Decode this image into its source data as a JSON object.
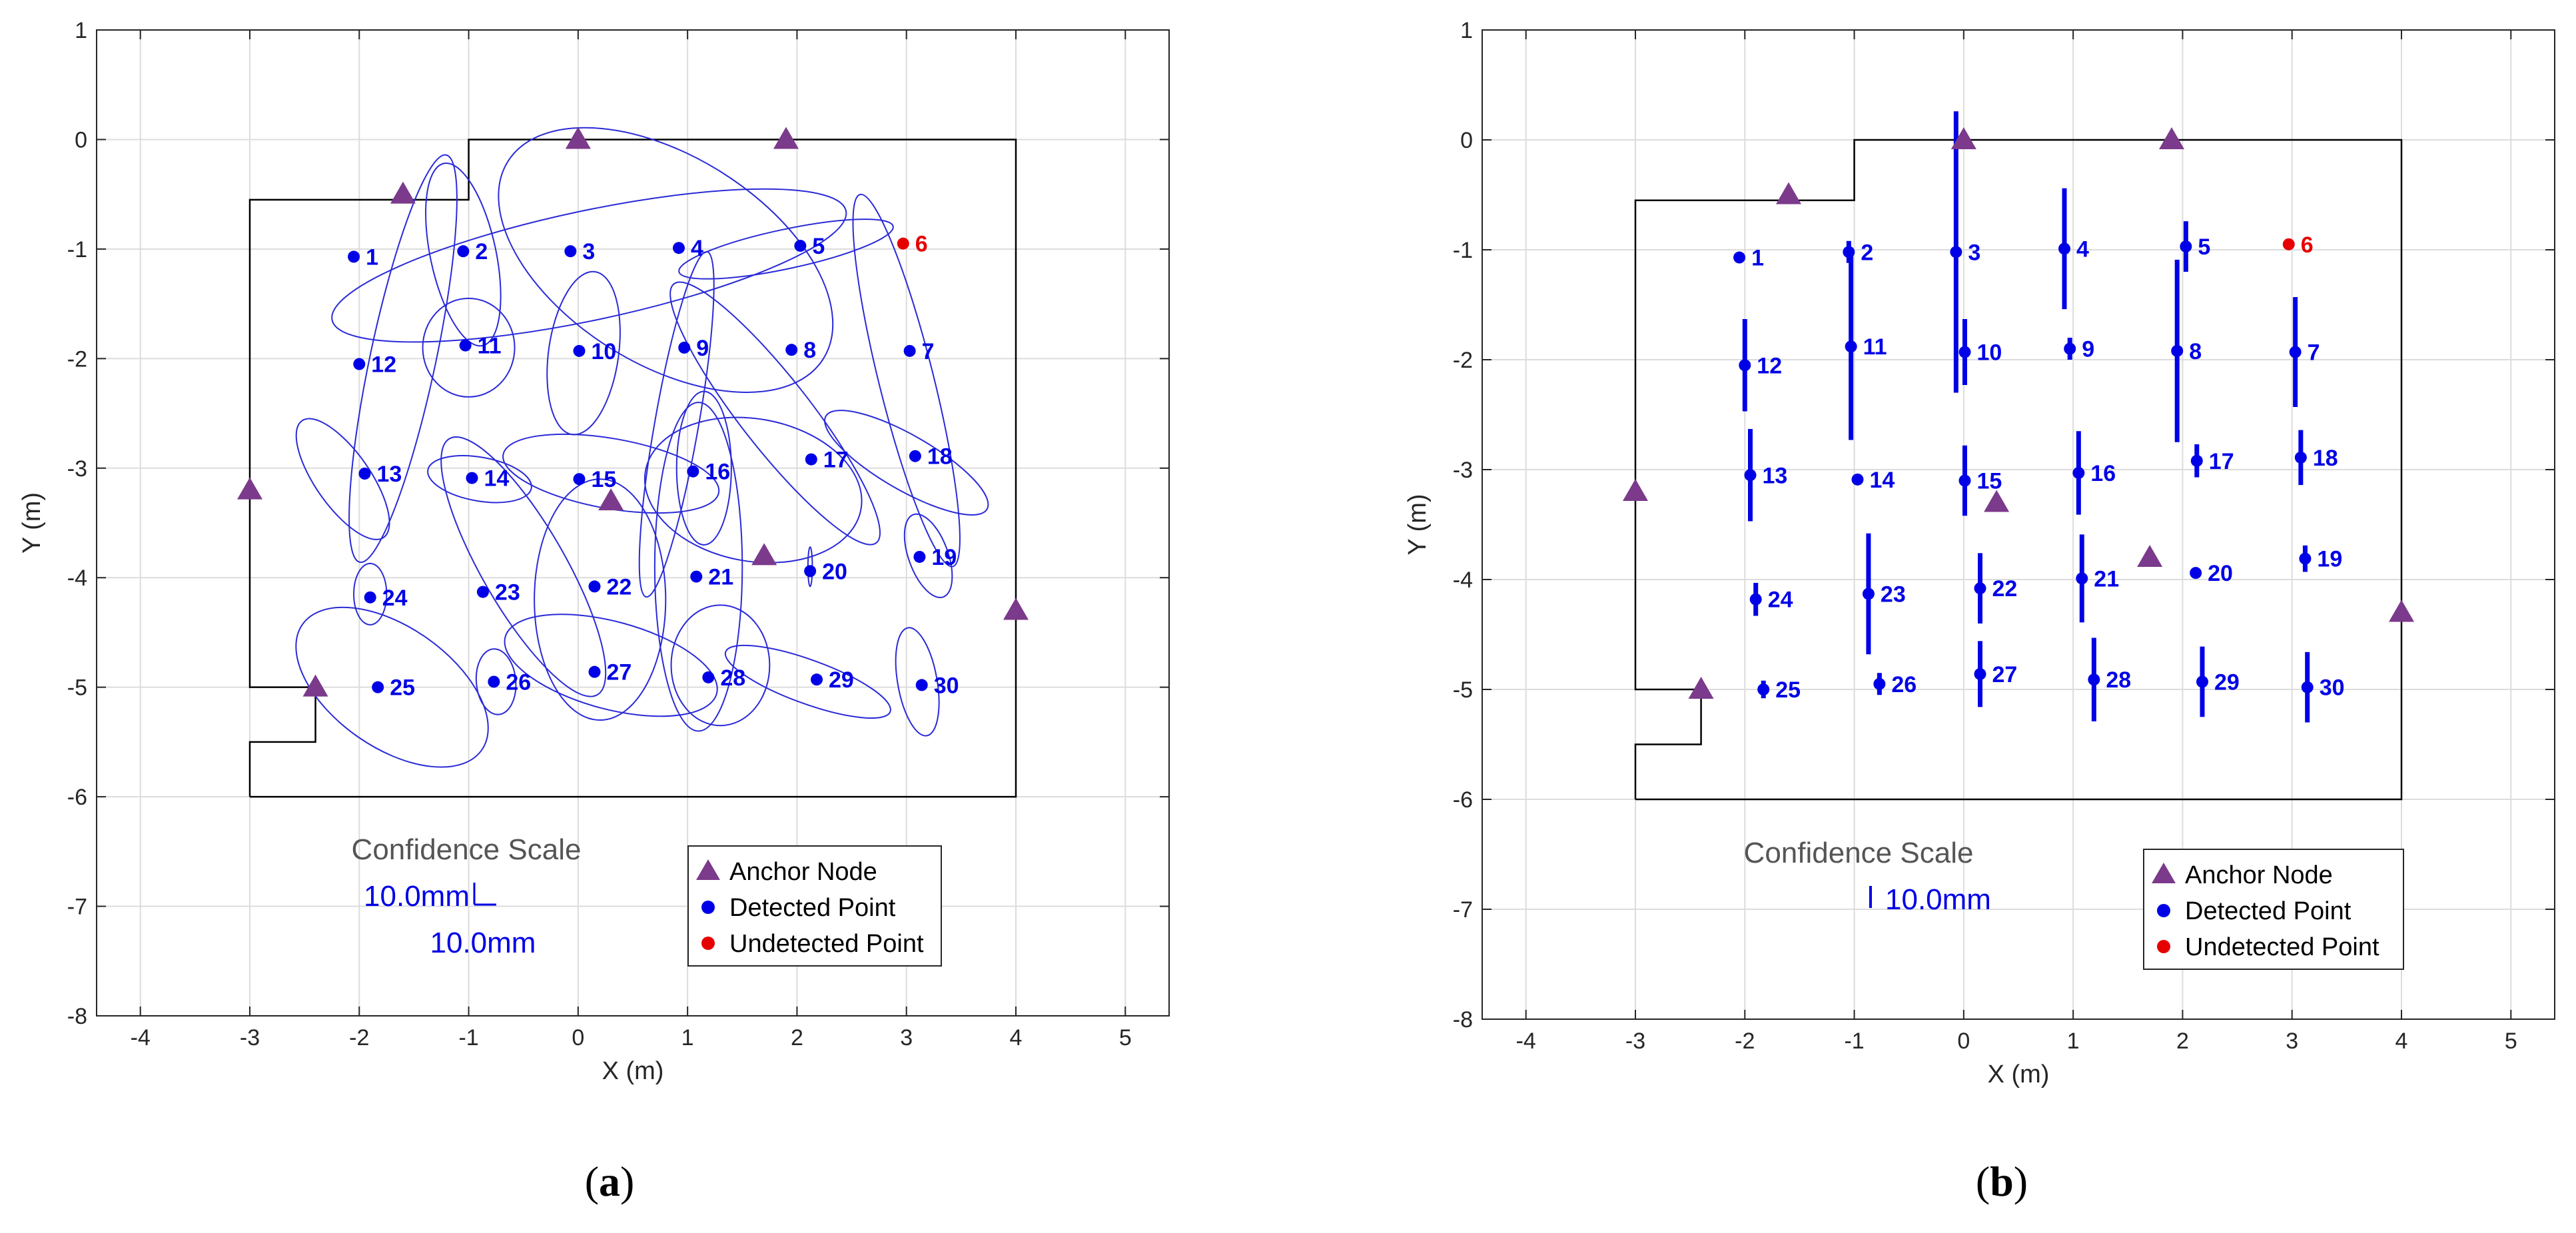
{
  "colors": {
    "anchor": "#7B3A8B",
    "detected": "#0000E6",
    "undetected": "#E60000",
    "ellipse": "#2A2AD8",
    "grid": "#DCDCDC",
    "room": "#000000"
  },
  "legend": {
    "anchor": "Anchor Node",
    "detected": "Detected Point",
    "undetected": "Undetected Point"
  },
  "shared": {
    "anchors": [
      [
        -1.6,
        -0.5
      ],
      [
        0,
        0
      ],
      [
        1.9,
        0
      ],
      [
        -3,
        -3.2
      ],
      [
        0.3,
        -3.3
      ],
      [
        1.7,
        -3.8
      ],
      [
        4,
        -4.3
      ],
      [
        -2.4,
        -5
      ]
    ],
    "room": [
      [
        -3,
        -6
      ],
      [
        4,
        -6
      ],
      [
        4,
        0
      ],
      [
        -1,
        0
      ],
      [
        -1,
        -0.55
      ],
      [
        -3,
        -0.55
      ],
      [
        -3,
        -5
      ],
      [
        -2.4,
        -5
      ],
      [
        -2.4,
        -5.5
      ],
      [
        -3,
        -5.5
      ],
      [
        -3,
        -6
      ]
    ],
    "points": [
      {
        "label": "1",
        "x": -2.05,
        "y": -1.07,
        "detected": true
      },
      {
        "label": "2",
        "x": -1.05,
        "y": -1.02,
        "detected": true
      },
      {
        "label": "3",
        "x": -0.07,
        "y": -1.02,
        "detected": true
      },
      {
        "label": "4",
        "x": 0.92,
        "y": -0.99,
        "detected": true
      },
      {
        "label": "5",
        "x": 2.03,
        "y": -0.97,
        "detected": true
      },
      {
        "label": "6",
        "x": 2.97,
        "y": -0.95,
        "detected": false
      },
      {
        "label": "7",
        "x": 3.03,
        "y": -1.93,
        "detected": true
      },
      {
        "label": "8",
        "x": 1.95,
        "y": -1.92,
        "detected": true
      },
      {
        "label": "9",
        "x": 0.97,
        "y": -1.9,
        "detected": true
      },
      {
        "label": "10",
        "x": 0.01,
        "y": -1.93,
        "detected": true
      },
      {
        "label": "11",
        "x": -1.03,
        "y": -1.88,
        "detected": true
      },
      {
        "label": "12",
        "x": -2.0,
        "y": -2.05,
        "detected": true
      },
      {
        "label": "13",
        "x": -1.95,
        "y": -3.05,
        "detected": true
      },
      {
        "label": "14",
        "x": -0.97,
        "y": -3.09,
        "detected": true
      },
      {
        "label": "15",
        "x": 0.01,
        "y": -3.1,
        "detected": true
      },
      {
        "label": "16",
        "x": 1.05,
        "y": -3.03,
        "detected": true
      },
      {
        "label": "17",
        "x": 2.13,
        "y": -2.92,
        "detected": true
      },
      {
        "label": "18",
        "x": 3.08,
        "y": -2.89,
        "detected": true
      },
      {
        "label": "19",
        "x": 3.12,
        "y": -3.81,
        "detected": true
      },
      {
        "label": "20",
        "x": 2.12,
        "y": -3.94,
        "detected": true
      },
      {
        "label": "21",
        "x": 1.08,
        "y": -3.99,
        "detected": true
      },
      {
        "label": "22",
        "x": 0.15,
        "y": -4.08,
        "detected": true
      },
      {
        "label": "23",
        "x": -0.87,
        "y": -4.13,
        "detected": true
      },
      {
        "label": "24",
        "x": -1.9,
        "y": -4.18,
        "detected": true
      },
      {
        "label": "25",
        "x": -1.83,
        "y": -5.0,
        "detected": true
      },
      {
        "label": "26",
        "x": -0.77,
        "y": -4.95,
        "detected": true
      },
      {
        "label": "27",
        "x": 0.15,
        "y": -4.86,
        "detected": true
      },
      {
        "label": "28",
        "x": 1.19,
        "y": -4.91,
        "detected": true
      },
      {
        "label": "29",
        "x": 2.18,
        "y": -4.93,
        "detected": true
      },
      {
        "label": "30",
        "x": 3.14,
        "y": -4.98,
        "detected": true
      }
    ]
  },
  "chart_data": [
    {
      "type": "scatter",
      "panel": "a",
      "caption": "(a)",
      "xlabel": "X (m)",
      "ylabel": "Y (m)",
      "xlim": [
        -4.4,
        5.4
      ],
      "ylim": [
        -8,
        1
      ],
      "xticks": [
        -4,
        -3,
        -2,
        -1,
        0,
        1,
        2,
        3,
        4,
        5
      ],
      "yticks": [
        1,
        0,
        -1,
        -2,
        -3,
        -4,
        -5,
        -6,
        -7,
        -8
      ],
      "grid": true,
      "legend_position": "bottom-right",
      "confidence_scale": {
        "title": "Confidence Scale",
        "x_label": "10.0mm",
        "y_label": "10.0mm"
      },
      "ellipses": [
        {
          "cx": -1.6,
          "cy": -2.0,
          "rx": 0.3,
          "ry": 1.9,
          "angle": -12
        },
        {
          "cx": -1.05,
          "cy": -1.05,
          "rx": 0.3,
          "ry": 0.85,
          "angle": 12
        },
        {
          "cx": 0.1,
          "cy": -1.15,
          "rx": 2.4,
          "ry": 0.5,
          "angle": 12
        },
        {
          "cx": 0.8,
          "cy": -1.1,
          "rx": 1.7,
          "ry": 0.95,
          "angle": -32
        },
        {
          "cx": 1.9,
          "cy": -1.0,
          "rx": 1.0,
          "ry": 0.18,
          "angle": 12
        },
        {
          "cx": 3.0,
          "cy": -2.2,
          "rx": 0.25,
          "ry": 1.75,
          "angle": 14
        },
        {
          "cx": 1.8,
          "cy": -2.5,
          "rx": 0.32,
          "ry": 1.5,
          "angle": 38
        },
        {
          "cx": 0.9,
          "cy": -2.6,
          "rx": 0.2,
          "ry": 1.6,
          "angle": -10
        },
        {
          "cx": 0.05,
          "cy": -1.95,
          "rx": 0.32,
          "ry": 0.75,
          "angle": -8
        },
        {
          "cx": -1.0,
          "cy": -1.9,
          "rx": 0.42,
          "ry": 0.45,
          "angle": 0
        },
        {
          "cx": -2.15,
          "cy": -3.1,
          "rx": 0.25,
          "ry": 0.65,
          "angle": 35
        },
        {
          "cx": -0.9,
          "cy": -3.1,
          "rx": 0.48,
          "ry": 0.2,
          "angle": -10
        },
        {
          "cx": 0.3,
          "cy": -3.05,
          "rx": 1.0,
          "ry": 0.32,
          "angle": -10
        },
        {
          "cx": 1.15,
          "cy": -3.0,
          "rx": 0.25,
          "ry": 0.7,
          "angle": 0
        },
        {
          "cx": 1.6,
          "cy": -3.2,
          "rx": 1.0,
          "ry": 0.65,
          "angle": -10
        },
        {
          "cx": 3.0,
          "cy": -2.95,
          "rx": 0.85,
          "ry": 0.25,
          "angle": -30
        },
        {
          "cx": 3.2,
          "cy": -3.8,
          "rx": 0.18,
          "ry": 0.4,
          "angle": 20
        },
        {
          "cx": 2.12,
          "cy": -3.9,
          "rx": 0.02,
          "ry": 0.18,
          "angle": 0
        },
        {
          "cx": 1.1,
          "cy": -3.9,
          "rx": 0.4,
          "ry": 1.5,
          "angle": 0
        },
        {
          "cx": 0.2,
          "cy": -4.2,
          "rx": 0.6,
          "ry": 1.1,
          "angle": 0
        },
        {
          "cx": -0.5,
          "cy": -3.9,
          "rx": 0.38,
          "ry": 1.35,
          "angle": 30
        },
        {
          "cx": -1.9,
          "cy": -4.15,
          "rx": 0.15,
          "ry": 0.28,
          "angle": 0
        },
        {
          "cx": -1.7,
          "cy": -5.0,
          "rx": 1.0,
          "ry": 0.55,
          "angle": -35
        },
        {
          "cx": -0.75,
          "cy": -4.95,
          "rx": 0.18,
          "ry": 0.3,
          "angle": 5
        },
        {
          "cx": 0.3,
          "cy": -4.8,
          "rx": 1.0,
          "ry": 0.4,
          "angle": -15
        },
        {
          "cx": 1.3,
          "cy": -4.8,
          "rx": 0.45,
          "ry": 0.55,
          "angle": 0
        },
        {
          "cx": 2.1,
          "cy": -4.95,
          "rx": 0.8,
          "ry": 0.2,
          "angle": -20
        },
        {
          "cx": 3.1,
          "cy": -4.95,
          "rx": 0.18,
          "ry": 0.5,
          "angle": 10
        }
      ]
    },
    {
      "type": "scatter",
      "panel": "b",
      "caption": "(b)",
      "xlabel": "X (m)",
      "ylabel": "Y (m)",
      "xlim": [
        -4.4,
        5.4
      ],
      "ylim": [
        -8,
        1
      ],
      "xticks": [
        -4,
        -3,
        -2,
        -1,
        0,
        1,
        2,
        3,
        4,
        5
      ],
      "yticks": [
        1,
        0,
        -1,
        -2,
        -3,
        -4,
        -5,
        -6,
        -7,
        -8
      ],
      "grid": true,
      "legend_position": "bottom-right",
      "confidence_scale": {
        "title": "Confidence Scale",
        "y_label": "10.0mm"
      },
      "errorbars": [
        {
          "label": "1",
          "half": 0.0
        },
        {
          "label": "2",
          "half": 0.1
        },
        {
          "label": "3",
          "half": 1.28
        },
        {
          "label": "4",
          "half": 0.55
        },
        {
          "label": "5",
          "half": 0.23
        },
        {
          "label": "6",
          "half": 0.0
        },
        {
          "label": "7",
          "half": 0.5
        },
        {
          "label": "8",
          "half": 0.83
        },
        {
          "label": "9",
          "half": 0.1
        },
        {
          "label": "10",
          "half": 0.3
        },
        {
          "label": "11",
          "half": 0.85
        },
        {
          "label": "12",
          "half": 0.42
        },
        {
          "label": "13",
          "half": 0.42
        },
        {
          "label": "14",
          "half": 0.04
        },
        {
          "label": "15",
          "half": 0.32
        },
        {
          "label": "16",
          "half": 0.38
        },
        {
          "label": "17",
          "half": 0.15
        },
        {
          "label": "18",
          "half": 0.25
        },
        {
          "label": "19",
          "half": 0.12
        },
        {
          "label": "20",
          "half": 0.0
        },
        {
          "label": "21",
          "half": 0.4
        },
        {
          "label": "22",
          "half": 0.32
        },
        {
          "label": "23",
          "half": 0.55
        },
        {
          "label": "24",
          "half": 0.15
        },
        {
          "label": "25",
          "half": 0.08
        },
        {
          "label": "26",
          "half": 0.1
        },
        {
          "label": "27",
          "half": 0.3
        },
        {
          "label": "28",
          "half": 0.38
        },
        {
          "label": "29",
          "half": 0.32
        },
        {
          "label": "30",
          "half": 0.32
        }
      ]
    }
  ]
}
